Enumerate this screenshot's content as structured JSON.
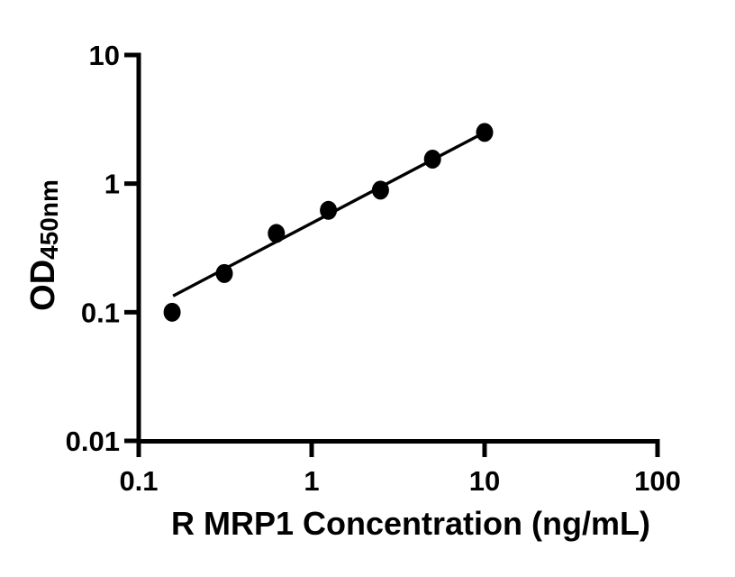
{
  "figure": {
    "background": "#ffffff",
    "x_axis_title": "R MRP1 Concentration (ng/mL)",
    "y_axis_title_main": "OD",
    "y_axis_title_sub": "450nm"
  },
  "chart_data": {
    "type": "scatter",
    "title": "",
    "xlabel": "R MRP1 Concentration (ng/mL)",
    "ylabel": "OD450nm",
    "x_scale": "log",
    "y_scale": "log",
    "xlim": [
      0.1,
      100
    ],
    "ylim": [
      0.01,
      10
    ],
    "grid": false,
    "legend": "none",
    "x_ticks": [
      0.1,
      1,
      10,
      100
    ],
    "x_tick_labels": [
      "0.1",
      "1",
      "10",
      "100"
    ],
    "y_ticks": [
      0.01,
      0.1,
      1,
      10
    ],
    "y_tick_labels": [
      "0.01",
      "0.1",
      "1",
      "10"
    ],
    "points": [
      {
        "x": 0.156,
        "y": 0.1
      },
      {
        "x": 0.3125,
        "y": 0.2
      },
      {
        "x": 0.625,
        "y": 0.41
      },
      {
        "x": 1.25,
        "y": 0.62
      },
      {
        "x": 2.5,
        "y": 0.89
      },
      {
        "x": 5,
        "y": 1.55
      },
      {
        "x": 10,
        "y": 2.5
      }
    ],
    "trend_line": {
      "x1": 0.158,
      "y1": 0.134,
      "x2": 10,
      "y2": 2.5
    },
    "marker_color": "#000000",
    "line_color": "#000000",
    "axis_color": "#000000",
    "tick_label_color": "#000000"
  }
}
